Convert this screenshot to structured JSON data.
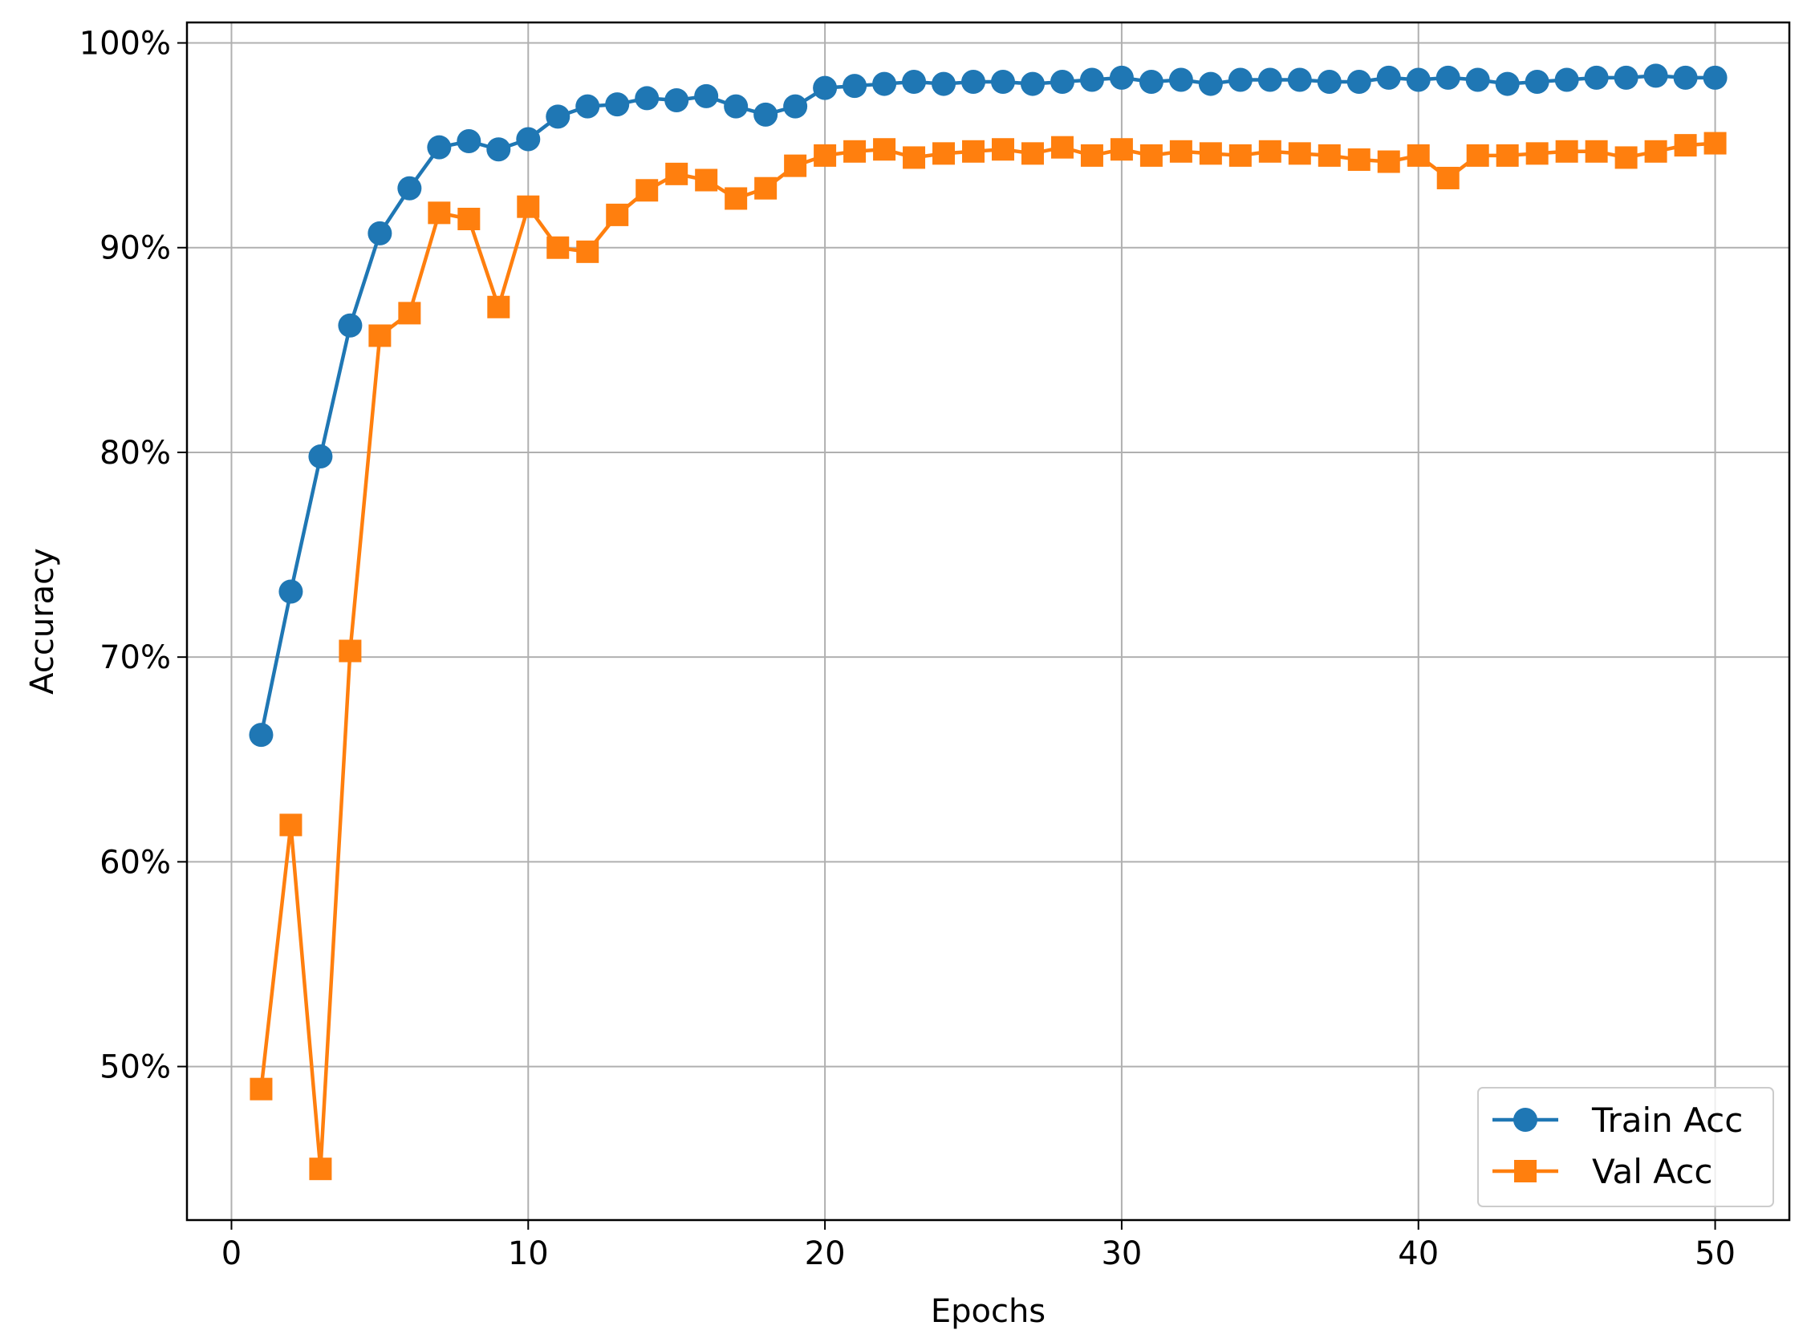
{
  "chart_data": {
    "type": "line",
    "xlabel": "Epochs",
    "ylabel": "Accuracy",
    "xlim": [
      -1.5,
      52.5
    ],
    "ylim": [
      0.425,
      1.01
    ],
    "xticks": [
      0,
      10,
      20,
      30,
      40,
      50
    ],
    "xtick_labels": [
      "0",
      "10",
      "20",
      "30",
      "40",
      "50"
    ],
    "yticks": [
      0.5,
      0.6,
      0.7,
      0.8,
      0.9,
      1.0
    ],
    "ytick_labels": [
      "50%",
      "60%",
      "70%",
      "80%",
      "90%",
      "100%"
    ],
    "grid": true,
    "legend_position": "lower-right",
    "x": [
      1,
      2,
      3,
      4,
      5,
      6,
      7,
      8,
      9,
      10,
      11,
      12,
      13,
      14,
      15,
      16,
      17,
      18,
      19,
      20,
      21,
      22,
      23,
      24,
      25,
      26,
      27,
      28,
      29,
      30,
      31,
      32,
      33,
      34,
      35,
      36,
      37,
      38,
      39,
      40,
      41,
      42,
      43,
      44,
      45,
      46,
      47,
      48,
      49,
      50
    ],
    "series": [
      {
        "name": "Train Acc",
        "color": "#1f77b4",
        "marker": "circle",
        "values": [
          0.662,
          0.732,
          0.798,
          0.862,
          0.907,
          0.929,
          0.949,
          0.952,
          0.948,
          0.953,
          0.964,
          0.969,
          0.97,
          0.973,
          0.972,
          0.974,
          0.969,
          0.965,
          0.969,
          0.978,
          0.979,
          0.98,
          0.981,
          0.98,
          0.981,
          0.981,
          0.98,
          0.981,
          0.982,
          0.983,
          0.981,
          0.982,
          0.98,
          0.982,
          0.982,
          0.982,
          0.981,
          0.981,
          0.983,
          0.982,
          0.983,
          0.982,
          0.98,
          0.981,
          0.982,
          0.983,
          0.983,
          0.984,
          0.983,
          0.983
        ]
      },
      {
        "name": "Val Acc",
        "color": "#ff7f0e",
        "marker": "square",
        "values": [
          0.489,
          0.618,
          0.45,
          0.703,
          0.857,
          0.868,
          0.917,
          0.914,
          0.871,
          0.92,
          0.9,
          0.898,
          0.916,
          0.928,
          0.936,
          0.933,
          0.924,
          0.929,
          0.94,
          0.945,
          0.947,
          0.948,
          0.944,
          0.946,
          0.947,
          0.948,
          0.946,
          0.949,
          0.945,
          0.948,
          0.945,
          0.947,
          0.946,
          0.945,
          0.947,
          0.946,
          0.945,
          0.943,
          0.942,
          0.945,
          0.934,
          0.945,
          0.945,
          0.946,
          0.947,
          0.947,
          0.944,
          0.947,
          0.95,
          0.951
        ]
      }
    ]
  }
}
